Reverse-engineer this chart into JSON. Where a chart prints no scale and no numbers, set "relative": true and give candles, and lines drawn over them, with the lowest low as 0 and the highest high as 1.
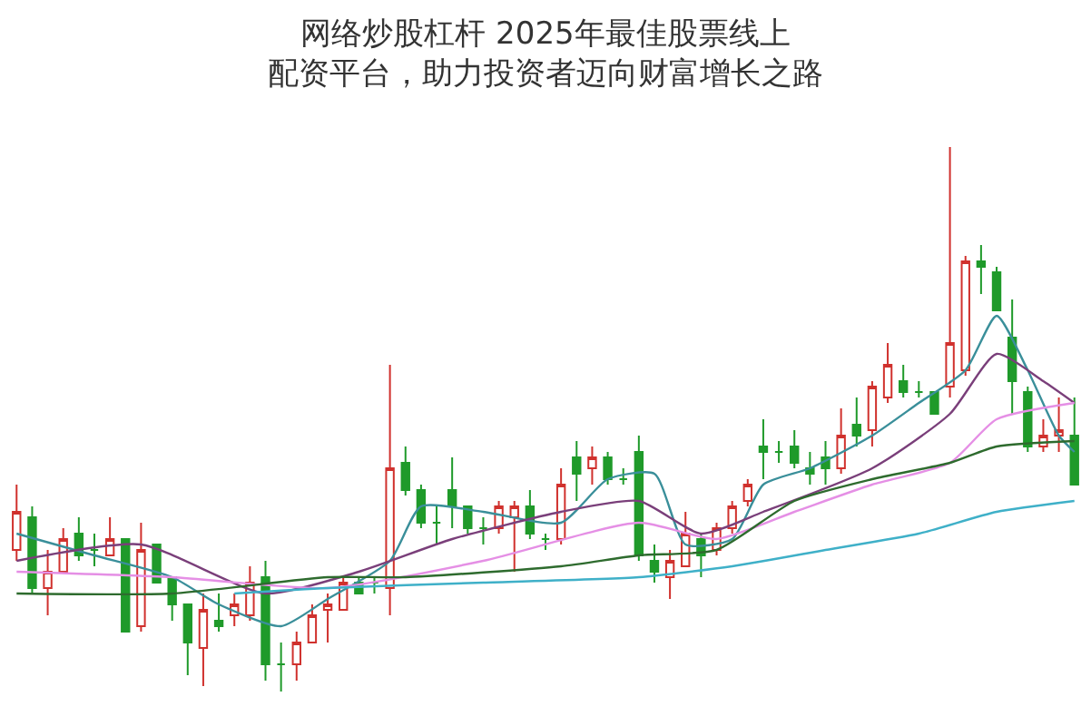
{
  "chart_data": {
    "type": "candlestick",
    "title": "网络炒股杠杆 2025年最佳股票线上配资平台，助力投资者迈向财富增长之路",
    "relative": true,
    "categories": [
      null,
      null,
      null,
      null,
      null,
      null,
      null,
      null,
      null,
      null,
      null,
      null,
      null,
      null,
      null,
      null,
      null,
      null,
      null,
      null,
      null,
      null,
      null,
      null,
      null,
      null,
      null,
      null,
      null,
      null,
      null,
      null,
      null,
      null,
      null,
      null,
      null,
      null,
      null,
      null,
      null,
      null,
      null,
      null,
      null,
      null,
      null,
      null,
      null,
      null,
      null,
      null,
      null,
      null,
      null,
      null,
      null,
      null,
      null,
      null,
      null,
      null,
      null,
      null,
      null,
      null,
      null,
      null,
      null
    ],
    "series": [
      {
        "colors": [
          "#d0312d",
          "#1f9a2a",
          "#d0312d",
          "#d0312d",
          "#1f9a2a",
          "#1f9a2a",
          "#d0312d",
          "#1f9a2a",
          "#d0312d",
          "#1f9a2a",
          "#1f9a2a",
          "#1f9a2a",
          "#d0312d",
          "#1f9a2a",
          "#d0312d",
          "#d0312d",
          "#1f9a2a",
          "#1f9a2a",
          "#d0312d",
          "#d0312d",
          "#d0312d",
          "#d0312d",
          "#1f9a2a",
          "#1f9a2a",
          "#d0312d",
          "#1f9a2a",
          "#1f9a2a",
          "#1f9a2a",
          "#1f9a2a",
          "#1f9a2a",
          "#1f9a2a",
          "#d0312d",
          "#d0312d",
          "#1f9a2a",
          "#1f9a2a",
          "#d0312d",
          "#1f9a2a",
          "#d0312d",
          "#1f9a2a",
          "#1f9a2a",
          "#1f9a2a",
          "#1f9a2a",
          "#d0312d",
          "#d0312d",
          "#1f9a2a",
          "#d0312d",
          "#d0312d",
          "#d0312d",
          "#1f9a2a",
          "#1f9a2a",
          "#1f9a2a",
          "#1f9a2a",
          "#1f9a2a",
          "#d0312d",
          "#1f9a2a",
          "#d0312d",
          "#d0312d",
          "#1f9a2a",
          "#1f9a2a",
          "#1f9a2a",
          "#d0312d",
          "#d0312d",
          "#1f9a2a",
          "#1f9a2a",
          "#1f9a2a",
          "#1f9a2a",
          "#d0312d",
          "#d0312d",
          "#1f9a2a"
        ],
        "ohlc": [
          [
            0.26,
            0.38,
            0.24,
            0.33
          ],
          [
            0.32,
            0.34,
            0.18,
            0.19
          ],
          [
            0.19,
            0.26,
            0.14,
            0.22
          ],
          [
            0.22,
            0.3,
            0.22,
            0.28
          ],
          [
            0.29,
            0.32,
            0.24,
            0.25
          ],
          [
            0.26,
            0.29,
            0.23,
            0.26
          ],
          [
            0.25,
            0.32,
            0.25,
            0.28
          ],
          [
            0.28,
            0.28,
            0.11,
            0.11
          ],
          [
            0.12,
            0.31,
            0.11,
            0.26
          ],
          [
            0.27,
            0.27,
            0.2,
            0.2
          ],
          [
            0.21,
            0.21,
            0.13,
            0.16
          ],
          [
            0.16,
            0.16,
            0.03,
            0.09
          ],
          [
            0.08,
            0.18,
            0.01,
            0.15
          ],
          [
            0.13,
            0.18,
            0.11,
            0.12
          ],
          [
            0.14,
            0.18,
            0.12,
            0.16
          ],
          [
            0.14,
            0.23,
            0.13,
            0.2
          ],
          [
            0.21,
            0.24,
            0.02,
            0.05
          ],
          [
            0.05,
            0.09,
            0,
            0.05
          ],
          [
            0.05,
            0.11,
            0.02,
            0.09
          ],
          [
            0.09,
            0.16,
            0.09,
            0.14
          ],
          [
            0.15,
            0.18,
            0.09,
            0.16
          ],
          [
            0.15,
            0.21,
            0.15,
            0.2
          ],
          [
            0.2,
            0.21,
            0.18,
            0.18
          ],
          [
            0.2,
            0.21,
            0.18,
            0.2
          ],
          [
            0.19,
            0.6,
            0.14,
            0.41
          ],
          [
            0.42,
            0.45,
            0.36,
            0.37
          ],
          [
            0.37,
            0.38,
            0.3,
            0.31
          ],
          [
            0.31,
            0.34,
            0.27,
            0.31
          ],
          [
            0.37,
            0.43,
            0.3,
            0.34
          ],
          [
            0.34,
            0.34,
            0.29,
            0.3
          ],
          [
            0.3,
            0.32,
            0.27,
            0.3
          ],
          [
            0.3,
            0.35,
            0.29,
            0.34
          ],
          [
            0.32,
            0.35,
            0.22,
            0.34
          ],
          [
            0.34,
            0.37,
            0.28,
            0.29
          ],
          [
            0.28,
            0.29,
            0.26,
            0.28
          ],
          [
            0.28,
            0.41,
            0.27,
            0.38
          ],
          [
            0.43,
            0.46,
            0.35,
            0.4
          ],
          [
            0.41,
            0.45,
            0.38,
            0.43
          ],
          [
            0.43,
            0.44,
            0.38,
            0.39
          ],
          [
            0.39,
            0.41,
            0.38,
            0.39
          ],
          [
            0.44,
            0.47,
            0.24,
            0.25
          ],
          [
            0.24,
            0.27,
            0.2,
            0.22
          ],
          [
            0.21,
            0.26,
            0.17,
            0.24
          ],
          [
            0.23,
            0.33,
            0.23,
            0.29
          ],
          [
            0.28,
            0.29,
            0.21,
            0.25
          ],
          [
            0.26,
            0.31,
            0.25,
            0.3
          ],
          [
            0.3,
            0.35,
            0.29,
            0.34
          ],
          [
            0.35,
            0.39,
            0.34,
            0.38
          ],
          [
            0.45,
            0.5,
            0.39,
            0.44
          ],
          [
            0.44,
            0.46,
            0.42,
            0.44
          ],
          [
            0.45,
            0.48,
            0.41,
            0.42
          ],
          [
            0.41,
            0.44,
            0.38,
            0.4
          ],
          [
            0.43,
            0.46,
            0.38,
            0.41
          ],
          [
            0.41,
            0.52,
            0.4,
            0.47
          ],
          [
            0.49,
            0.54,
            0.45,
            0.47
          ],
          [
            0.48,
            0.57,
            0.45,
            0.56
          ],
          [
            0.54,
            0.64,
            0.53,
            0.6
          ],
          [
            0.57,
            0.6,
            0.54,
            0.55
          ],
          [
            0.55,
            0.57,
            0.54,
            0.55
          ],
          [
            0.55,
            0.55,
            0.51,
            0.51
          ],
          [
            0.56,
            1,
            0.54,
            0.64
          ],
          [
            0.59,
            0.8,
            0.58,
            0.79
          ],
          [
            0.79,
            0.82,
            0.73,
            0.78
          ],
          [
            0.77,
            0.78,
            0.7,
            0.7
          ],
          [
            0.65,
            0.72,
            0.51,
            0.57
          ],
          [
            0.55,
            0.56,
            0.44,
            0.45
          ],
          [
            0.45,
            0.5,
            0.44,
            0.47
          ],
          [
            0.47,
            0.54,
            0.44,
            0.48
          ],
          [
            0.47,
            0.54,
            0.38,
            0.38
          ]
        ]
      },
      {
        "type": "line",
        "color": "#3a8f9a",
        "values": [
          0.29,
          null,
          null,
          null,
          null,
          0.25,
          null,
          null,
          null,
          null,
          0.21,
          null,
          null,
          0.16,
          null,
          null,
          null,
          0.12,
          null,
          null,
          0.17,
          null,
          null,
          null,
          0.24,
          null,
          0.34,
          null,
          null,
          null,
          0.33,
          null,
          null,
          null,
          null,
          0.31,
          null,
          null,
          0.39,
          null,
          null,
          0.4,
          null,
          0.27,
          null,
          null,
          0.28,
          null,
          0.38,
          null,
          null,
          0.41,
          null,
          null,
          null,
          0.47,
          null,
          null,
          0.53,
          null,
          null,
          0.59,
          null,
          0.69,
          null,
          0.59,
          null,
          0.47,
          0.44
        ]
      },
      {
        "type": "line",
        "color": "#7a3f7a",
        "values": [
          0.24,
          null,
          null,
          null,
          null,
          null,
          null,
          null,
          0.27,
          null,
          null,
          null,
          null,
          null,
          null,
          null,
          0.18,
          null,
          null,
          null,
          null,
          null,
          0.22,
          null,
          null,
          null,
          null,
          null,
          0.28,
          null,
          null,
          null,
          null,
          null,
          null,
          0.33,
          null,
          null,
          null,
          null,
          0.35,
          null,
          null,
          null,
          0.29,
          null,
          null,
          null,
          0.33,
          null,
          null,
          null,
          null,
          null,
          null,
          0.41,
          null,
          null,
          null,
          null,
          0.51,
          null,
          null,
          0.62,
          null,
          null,
          0.57,
          null,
          0.53
        ]
      },
      {
        "type": "line",
        "color": "#e58fe5",
        "values": [
          0.22,
          null,
          null,
          null,
          null,
          null,
          null,
          null,
          null,
          null,
          0.21,
          null,
          null,
          null,
          null,
          null,
          null,
          null,
          null,
          null,
          0.19,
          null,
          null,
          null,
          null,
          null,
          null,
          null,
          null,
          null,
          0.24,
          null,
          null,
          null,
          null,
          null,
          null,
          null,
          null,
          null,
          0.31,
          null,
          null,
          null,
          null,
          0.28,
          null,
          null,
          null,
          null,
          0.33,
          null,
          null,
          null,
          null,
          0.38,
          null,
          null,
          null,
          null,
          0.42,
          null,
          null,
          0.5,
          null,
          null,
          null,
          null,
          0.53
        ]
      },
      {
        "type": "line",
        "color": "#2e6b2e",
        "values": [
          0.18,
          null,
          null,
          null,
          null,
          null,
          null,
          null,
          null,
          null,
          0.18,
          null,
          null,
          null,
          null,
          null,
          null,
          null,
          null,
          null,
          0.21,
          null,
          null,
          null,
          null,
          0.21,
          null,
          null,
          null,
          null,
          null,
          null,
          null,
          null,
          null,
          0.23,
          null,
          null,
          null,
          null,
          0.25,
          null,
          null,
          null,
          null,
          0.26,
          null,
          null,
          null,
          null,
          0.35,
          null,
          null,
          null,
          null,
          0.39,
          null,
          null,
          null,
          null,
          0.42,
          null,
          null,
          0.45,
          null,
          null,
          null,
          null,
          0.46
        ]
      },
      {
        "type": "line",
        "color": "#3fb0c8",
        "values": [
          null,
          null,
          null,
          null,
          null,
          null,
          null,
          null,
          null,
          null,
          null,
          null,
          null,
          null,
          0.18,
          null,
          null,
          null,
          null,
          null,
          0.19,
          null,
          null,
          null,
          null,
          null,
          null,
          null,
          null,
          null,
          0.2,
          null,
          null,
          null,
          null,
          null,
          null,
          null,
          null,
          null,
          0.21,
          null,
          null,
          null,
          null,
          null,
          0.23,
          null,
          null,
          null,
          null,
          null,
          0.26,
          null,
          null,
          null,
          null,
          null,
          0.29,
          null,
          null,
          null,
          null,
          0.33,
          null,
          null,
          null,
          null,
          0.35
        ]
      }
    ]
  }
}
